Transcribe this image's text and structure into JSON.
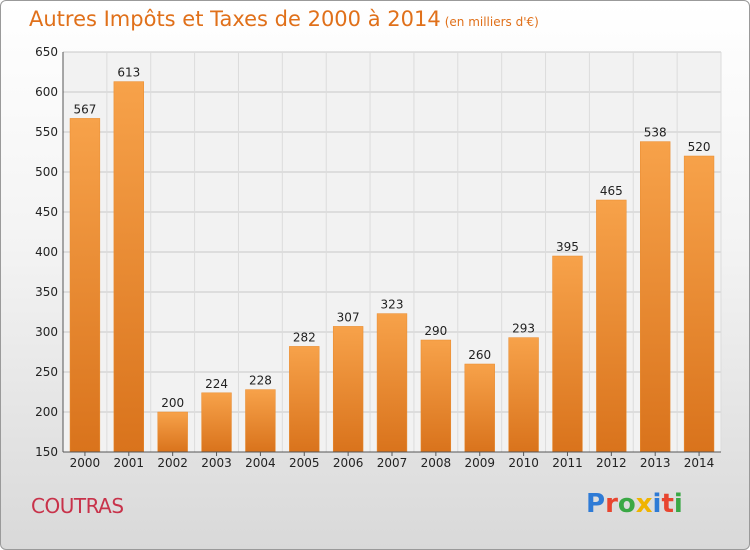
{
  "chart_data": {
    "type": "bar",
    "title": "Autres Impôts et Taxes de 2000 à 2014",
    "subtitle": "(en milliers d'€)",
    "categories": [
      "2000",
      "2001",
      "2002",
      "2003",
      "2004",
      "2005",
      "2006",
      "2007",
      "2008",
      "2009",
      "2010",
      "2011",
      "2012",
      "2013",
      "2014"
    ],
    "values": [
      567,
      613,
      200,
      224,
      228,
      282,
      307,
      323,
      290,
      260,
      293,
      395,
      465,
      538,
      520
    ],
    "ylim": [
      150,
      650
    ],
    "yticks": [
      150,
      200,
      250,
      300,
      350,
      400,
      450,
      500,
      550,
      600,
      650
    ],
    "xlabel": "",
    "ylabel": "",
    "grid": true,
    "bar_color": "#f0902e"
  },
  "footer": {
    "town": "COUTRAS",
    "logo_letters": [
      "P",
      "r",
      "o",
      "x",
      "i",
      "t",
      "i"
    ],
    "logo_colors": [
      "#2e7bd6",
      "#e8452f",
      "#3aa845",
      "#f0b400",
      "#2e7bd6",
      "#e8452f",
      "#3aa845"
    ]
  }
}
